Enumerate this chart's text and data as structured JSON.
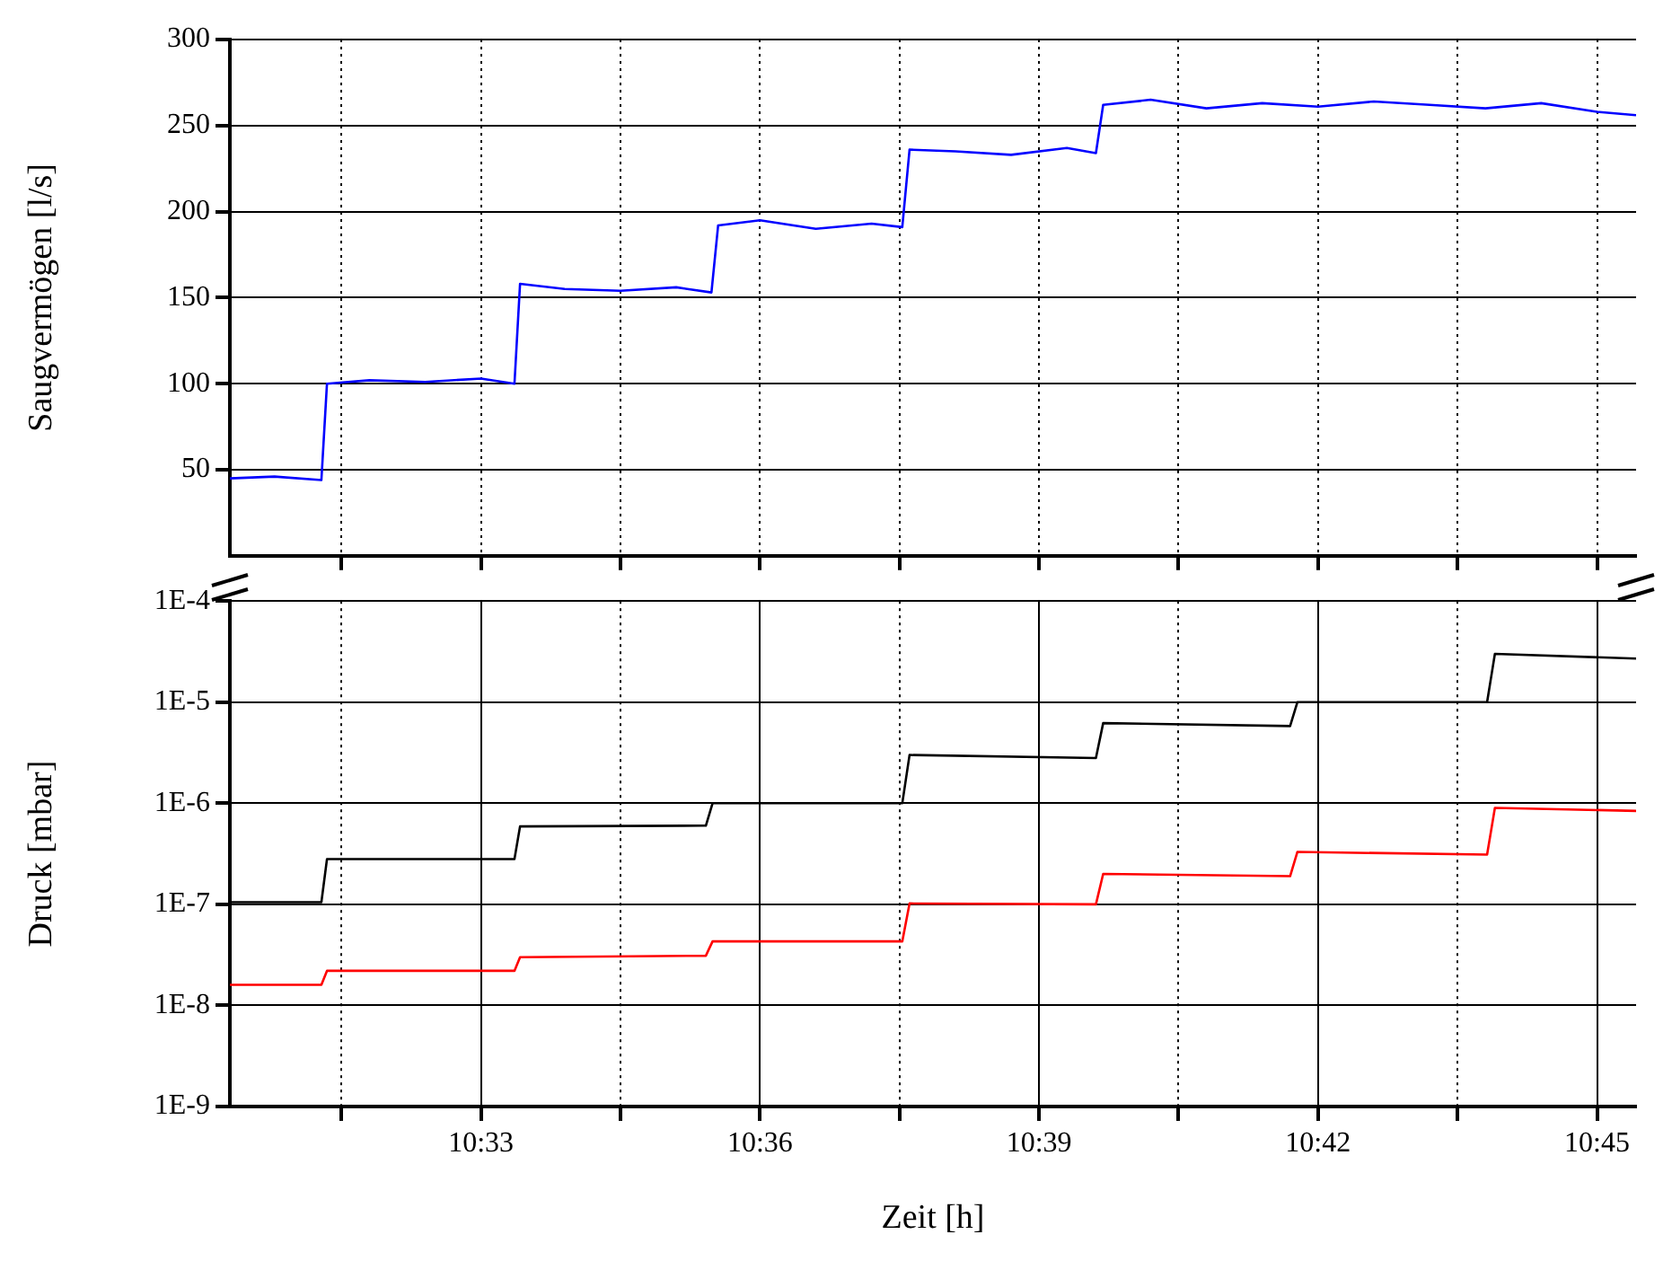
{
  "chart_data": [
    {
      "type": "line",
      "ylabel": "Saugvermögen [l/s]",
      "xlim": [
        10.505,
        10.757
      ],
      "xticks": [
        {
          "value": 10.525,
          "label": null
        },
        {
          "value": 10.55,
          "label": null
        },
        {
          "value": 10.575,
          "label": null
        },
        {
          "value": 10.6,
          "label": null
        },
        {
          "value": 10.625,
          "label": null
        },
        {
          "value": 10.65,
          "label": null
        },
        {
          "value": 10.675,
          "label": null
        },
        {
          "value": 10.7,
          "label": null
        },
        {
          "value": 10.725,
          "label": null
        },
        {
          "value": 10.75,
          "label": null
        }
      ],
      "ylim": [
        0,
        300
      ],
      "yticks": [
        50,
        100,
        150,
        200,
        250,
        300
      ],
      "grid": true,
      "tick_labels": "y",
      "marker": "none",
      "series": [
        {
          "color": "#0000ff",
          "x": [
            10.505,
            10.513,
            10.5214,
            10.5224,
            10.53,
            10.54,
            10.55,
            10.556,
            10.557,
            10.565,
            10.575,
            10.585,
            10.5913,
            10.5925,
            10.6,
            10.61,
            10.62,
            10.6255,
            10.6268,
            10.635,
            10.645,
            10.655,
            10.6602,
            10.6615,
            10.67,
            10.68,
            10.69,
            10.7,
            10.71,
            10.72,
            10.73,
            10.74,
            10.75,
            10.757
          ],
          "values": [
            45,
            46,
            44,
            100,
            102,
            101,
            103,
            100,
            158,
            155,
            154,
            156,
            153,
            192,
            195,
            190,
            193,
            191,
            236,
            235,
            233,
            237,
            234,
            262,
            265,
            260,
            263,
            261,
            264,
            262,
            260,
            263,
            258,
            256
          ]
        }
      ]
    },
    {
      "type": "line",
      "xlabel": "Zeit [h]",
      "ylabel": "Druck [mbar]",
      "xlim": [
        10.505,
        10.757
      ],
      "xticks": [
        {
          "value": 10.525,
          "label": null
        },
        {
          "value": 10.55,
          "label": "10:33"
        },
        {
          "value": 10.575,
          "label": null
        },
        {
          "value": 10.6,
          "label": "10:36"
        },
        {
          "value": 10.625,
          "label": null
        },
        {
          "value": 10.65,
          "label": "10:39"
        },
        {
          "value": 10.675,
          "label": null
        },
        {
          "value": 10.7,
          "label": "10:42"
        },
        {
          "value": 10.725,
          "label": null
        },
        {
          "value": 10.75,
          "label": "10:45"
        }
      ],
      "log": "y",
      "ylim": [
        1e-09,
        0.0001
      ],
      "yticks": [
        {
          "value": 1e-09,
          "label": "1E-9"
        },
        {
          "value": 1e-08,
          "label": "1E-8"
        },
        {
          "value": 1e-07,
          "label": "1E-7"
        },
        {
          "value": 1e-06,
          "label": "1E-6"
        },
        {
          "value": 1e-05,
          "label": "1E-5"
        },
        {
          "value": 0.0001,
          "label": "1E-4"
        }
      ],
      "grid": true,
      "marker": "none",
      "series": [
        {
          "color": "#000000",
          "x": [
            10.505,
            10.5214,
            10.5224,
            10.556,
            10.557,
            10.5903,
            10.5915,
            10.6255,
            10.6268,
            10.6602,
            10.6615,
            10.695,
            10.6963,
            10.7303,
            10.7317,
            10.757
          ],
          "values": [
            1.05e-07,
            1.05e-07,
            2.8e-07,
            2.8e-07,
            5.9e-07,
            6e-07,
            1e-06,
            1e-06,
            3e-06,
            2.8e-06,
            6.2e-06,
            5.8e-06,
            1e-05,
            1e-05,
            3e-05,
            2.7e-05
          ]
        },
        {
          "color": "#ff0000",
          "x": [
            10.505,
            10.5214,
            10.5224,
            10.556,
            10.557,
            10.5903,
            10.5915,
            10.6255,
            10.6268,
            10.6602,
            10.6615,
            10.695,
            10.6963,
            10.7303,
            10.7317,
            10.757
          ],
          "values": [
            1.6e-08,
            1.6e-08,
            2.2e-08,
            2.2e-08,
            3e-08,
            3.1e-08,
            4.3e-08,
            4.3e-08,
            1.02e-07,
            1e-07,
            2e-07,
            1.9e-07,
            3.3e-07,
            3.1e-07,
            9e-07,
            8.4e-07
          ]
        }
      ]
    }
  ]
}
